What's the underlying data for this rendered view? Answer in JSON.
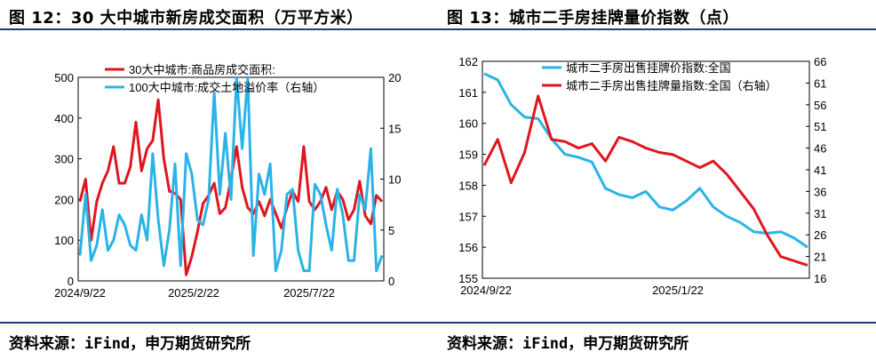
{
  "left": {
    "title": "图 12：30 大中城市新房成交面积（万平方米）",
    "source": "资料来源：iFind，申万期货研究所",
    "chart_data": {
      "type": "line",
      "x_tick_labels": [
        "2024/9/22",
        "2025/2/22",
        "2025/7/22"
      ],
      "y_left_ticks": [
        "0",
        "100",
        "200",
        "300",
        "400",
        "500"
      ],
      "y_right_ticks": [
        "0",
        "5",
        "10",
        "15",
        "20"
      ],
      "ylim_left": [
        0,
        500
      ],
      "ylim_right": [
        0,
        20
      ],
      "legend_position": "top",
      "colors": {
        "red": "#e0161e",
        "blue": "#2ab3e6"
      },
      "series": [
        {
          "name": "30大中城市:商品房成交面积:",
          "axis": "left",
          "color": "#e0161e",
          "values": [
            195,
            250,
            100,
            195,
            240,
            270,
            330,
            240,
            240,
            280,
            390,
            270,
            325,
            345,
            445,
            300,
            220,
            215,
            200,
            15,
            60,
            120,
            190,
            210,
            240,
            165,
            180,
            250,
            330,
            230,
            180,
            165,
            195,
            160,
            200,
            165,
            130,
            180,
            220,
            195,
            330,
            195,
            175,
            195,
            230,
            175,
            220,
            200,
            150,
            175,
            245,
            160,
            140,
            210,
            195
          ]
        },
        {
          "name": "100大中城市:成交土地溢价率（右轴）",
          "axis": "right",
          "color": "#2ab3e6",
          "values": [
            2.5,
            8.5,
            2.0,
            3.5,
            7.0,
            3.0,
            4.0,
            6.5,
            5.5,
            3.5,
            3.0,
            6.5,
            4.0,
            12.5,
            6.0,
            1.5,
            5.0,
            11.5,
            1.5,
            12.5,
            10.5,
            6.0,
            5.5,
            8.0,
            18.5,
            8.5,
            14.5,
            8.0,
            20.0,
            13.0,
            20.0,
            2.5,
            10.5,
            8.5,
            11.5,
            1.0,
            3.0,
            8.5,
            9.0,
            3.0,
            1.0,
            1.0,
            9.5,
            8.5,
            5.5,
            3.0,
            9.0,
            6.5,
            2.0,
            2.0,
            8.5,
            7.0,
            13.0,
            1.0,
            2.5
          ]
        }
      ]
    }
  },
  "right": {
    "title": "图 13：城市二手房挂牌量价指数（点）",
    "source": "资料来源：iFind，申万期货研究所",
    "chart_data": {
      "type": "line",
      "x_tick_labels": [
        "2024/9/22",
        "2025/1/22"
      ],
      "y_left_ticks": [
        "155",
        "156",
        "157",
        "158",
        "159",
        "160",
        "161",
        "162"
      ],
      "y_right_ticks": [
        "16",
        "21",
        "26",
        "31",
        "36",
        "41",
        "46",
        "51",
        "56",
        "61",
        "66"
      ],
      "ylim_left": [
        155,
        162
      ],
      "ylim_right": [
        16,
        66
      ],
      "legend_position": "top",
      "colors": {
        "blue": "#2ab3e6",
        "red": "#e0161e"
      },
      "series": [
        {
          "name": "城市二手房出售挂牌价指数:全国",
          "axis": "left",
          "color": "#2ab3e6",
          "values": [
            161.6,
            161.4,
            160.6,
            160.2,
            160.15,
            159.5,
            159.0,
            158.9,
            158.75,
            157.9,
            157.7,
            157.6,
            157.8,
            157.3,
            157.2,
            157.5,
            157.9,
            157.3,
            157.0,
            156.8,
            156.5,
            156.45,
            156.5,
            156.3,
            156.0
          ]
        },
        {
          "name": "城市二手房出售挂牌量指数:全国（右轴）",
          "axis": "right",
          "color": "#e0161e",
          "values": [
            42,
            48,
            38,
            45,
            58,
            48,
            47.5,
            46,
            47,
            43,
            48.5,
            47.5,
            46,
            45,
            44.5,
            43,
            41.5,
            43,
            40,
            36,
            32,
            26,
            21,
            20,
            19
          ]
        }
      ]
    }
  }
}
